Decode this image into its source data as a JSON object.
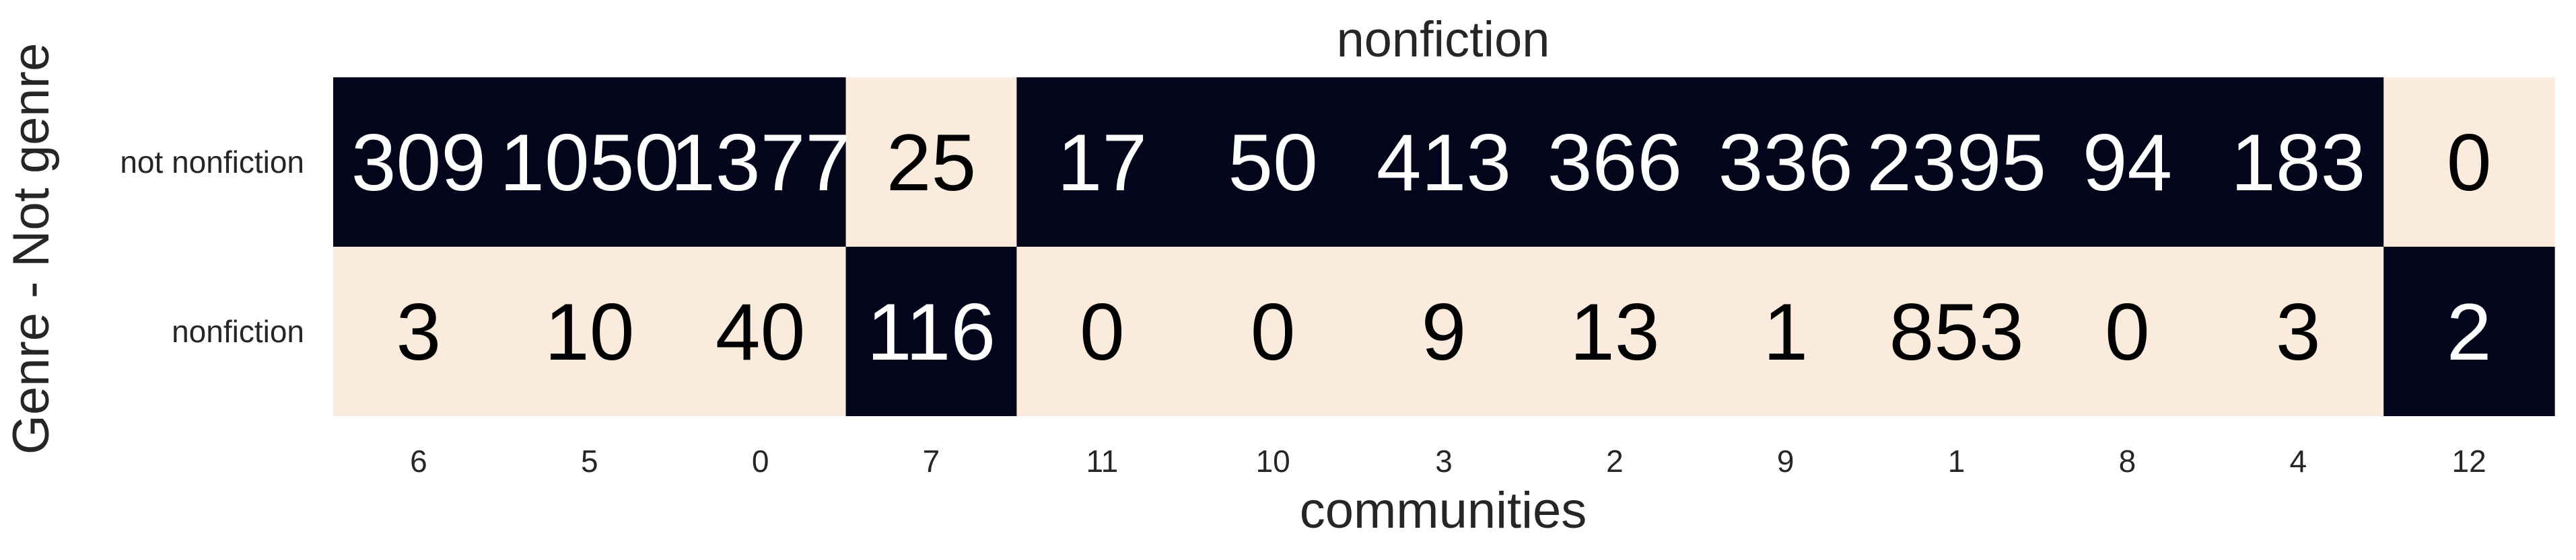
{
  "chart_data": {
    "type": "heatmap",
    "title": "nonfiction",
    "xlabel": "communities",
    "ylabel": "Genre - Not genre",
    "x_categories": [
      "6",
      "5",
      "0",
      "7",
      "11",
      "10",
      "3",
      "2",
      "9",
      "1",
      "8",
      "4",
      "12"
    ],
    "y_categories": [
      "not nonfiction",
      "nonfiction"
    ],
    "values": [
      [
        309,
        1050,
        1377,
        25,
        17,
        50,
        413,
        366,
        336,
        2395,
        94,
        183,
        0
      ],
      [
        3,
        10,
        40,
        116,
        0,
        0,
        9,
        13,
        1,
        853,
        0,
        3,
        2
      ]
    ],
    "color_normalization": "per column (each column scaled to its own min and max)",
    "colormap": "rocket_r (light cream = low, near-black = high)",
    "colors": {
      "text_on_dark": "#ffffff",
      "text_on_light": "#000000",
      "axis_text": "#262626"
    },
    "colorbar": false,
    "grid": false
  }
}
